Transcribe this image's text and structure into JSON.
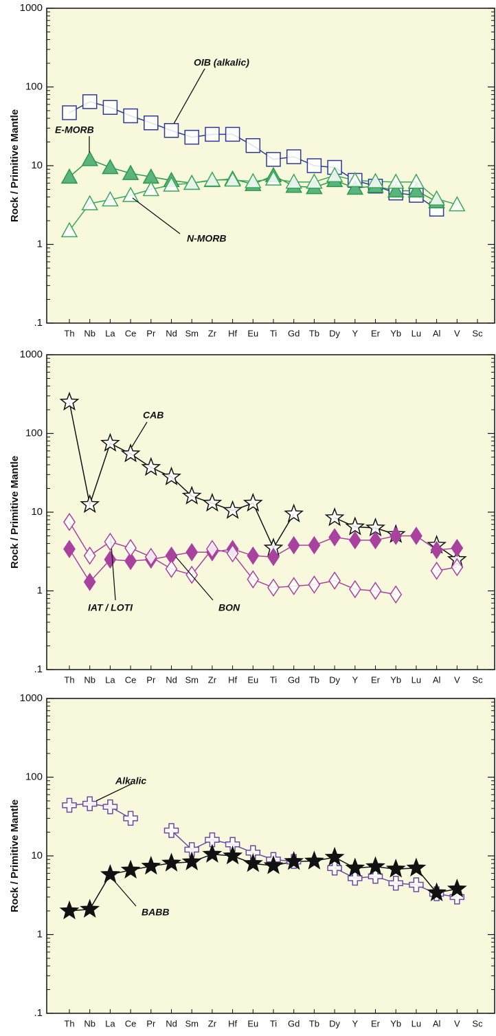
{
  "chart_data": [
    {
      "type": "line",
      "ylabel": "Rock / Primitive Mantle",
      "log_scale": true,
      "categories": [
        "Th",
        "Nb",
        "La",
        "Ce",
        "Pr",
        "Nd",
        "Sm",
        "Zr",
        "Hf",
        "Eu",
        "Ti",
        "Gd",
        "Tb",
        "Dy",
        "Y",
        "Er",
        "Yb",
        "Lu",
        "Al",
        "V",
        "Sc"
      ],
      "ylim": [
        0.1,
        1000
      ],
      "yticks": [
        {
          "value": 0.1,
          "label": ".1"
        },
        1,
        10,
        100,
        1000
      ],
      "series": [
        {
          "name": "OIB (alkalic)",
          "color": "#2b3a9a",
          "marker": "square-open",
          "values": [
            47,
            65,
            55,
            43,
            35,
            28,
            23,
            25,
            25,
            18,
            12,
            13,
            10,
            9.5,
            6.5,
            5.5,
            4.5,
            4.2,
            2.8,
            null,
            null
          ]
        },
        {
          "name": "E-MORB",
          "color": "#2a9a4a",
          "marker": "triangle-filled",
          "values": [
            7.2,
            12,
            9.5,
            8,
            7.2,
            6.5,
            6,
            6.5,
            6.8,
            5.8,
            7.5,
            5.5,
            5.3,
            6.5,
            5.2,
            5.5,
            4.8,
            4.8,
            3.5,
            null,
            null
          ]
        },
        {
          "name": "N-MORB",
          "color": "#3aa858",
          "marker": "triangle-open",
          "values": [
            1.5,
            3.3,
            3.7,
            4.2,
            5,
            5.7,
            6,
            6.6,
            6.6,
            6.3,
            6.8,
            6.2,
            6.2,
            7.5,
            6.5,
            6.3,
            6.2,
            6.2,
            3.8,
            3.2,
            null
          ]
        }
      ]
    },
    {
      "type": "line",
      "ylabel": "Rock / Primitive Mantle",
      "log_scale": true,
      "categories": [
        "Th",
        "Nb",
        "La",
        "Ce",
        "Pr",
        "Nd",
        "Sm",
        "Zr",
        "Hf",
        "Eu",
        "Ti",
        "Gd",
        "Tb",
        "Dy",
        "Y",
        "Er",
        "Yb",
        "Lu",
        "Al",
        "V",
        "Sc"
      ],
      "ylim": [
        0.1,
        1000
      ],
      "yticks": [
        {
          "value": 0.1,
          "label": ".1"
        },
        1,
        10,
        100,
        1000
      ],
      "series": [
        {
          "name": "CAB",
          "color": "#111111",
          "marker": "star-open",
          "values": [
            250,
            12.5,
            75,
            55,
            37,
            28,
            16,
            13,
            10.5,
            13,
            3.5,
            9.5,
            null,
            8.5,
            6.5,
            6.3,
            5.2,
            null,
            3.8,
            2.5,
            null
          ]
        },
        {
          "name": "IAT / LOTI",
          "color": "#a8429e",
          "marker": "diamond-filled",
          "values": [
            3.4,
            1.3,
            2.5,
            2.4,
            2.5,
            2.8,
            3.1,
            3.1,
            3.4,
            2.8,
            2.7,
            3.8,
            3.8,
            4.8,
            4.4,
            4.4,
            5,
            5,
            3.3,
            3.5,
            null
          ]
        },
        {
          "name": "BON",
          "color": "#a8429e",
          "marker": "diamond-open",
          "values": [
            7.5,
            2.8,
            4.2,
            3.5,
            2.7,
            1.9,
            1.6,
            3.4,
            3,
            1.4,
            1.1,
            1.15,
            1.2,
            1.35,
            1.05,
            1,
            0.9,
            null,
            1.8,
            2,
            null
          ]
        }
      ]
    },
    {
      "type": "line",
      "ylabel": "Rock / Primitive Mantle",
      "log_scale": true,
      "categories": [
        "Th",
        "Nb",
        "La",
        "Ce",
        "Pr",
        "Nd",
        "Sm",
        "Zr",
        "Hf",
        "Eu",
        "Ti",
        "Gd",
        "Tb",
        "Dy",
        "Y",
        "Er",
        "Yb",
        "Lu",
        "Al",
        "V",
        "Sc"
      ],
      "ylim": [
        0.1,
        1000
      ],
      "yticks": [
        {
          "value": 0.1,
          "label": ".1"
        },
        1,
        10,
        100,
        1000
      ],
      "series": [
        {
          "name": "Alkalic",
          "color": "#6a4aa5",
          "marker": "cross-open",
          "values": [
            44,
            46,
            42,
            30,
            null,
            21,
            12,
            16,
            14,
            11,
            9,
            8.5,
            null,
            7,
            5.2,
            5.5,
            4.5,
            4.3,
            3.3,
            3,
            null
          ]
        },
        {
          "name": "BABB",
          "color": "#111111",
          "marker": "star-filled",
          "values": [
            2,
            2.1,
            5.8,
            6.6,
            7.4,
            8.1,
            8.4,
            10.5,
            10,
            8,
            7.5,
            8.5,
            8.6,
            9.6,
            7,
            7.3,
            6.8,
            7,
            3.4,
            3.8,
            null
          ]
        }
      ]
    }
  ]
}
